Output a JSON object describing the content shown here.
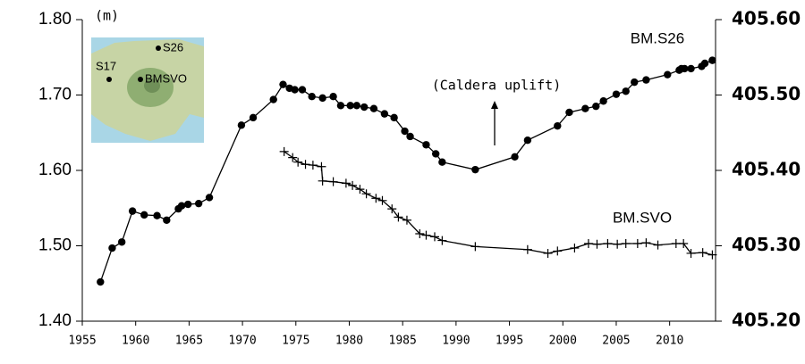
{
  "chart_data": {
    "type": "line",
    "xlim": [
      1955,
      2014.3
    ],
    "xticks": [
      1955,
      1960,
      1965,
      1970,
      1975,
      1980,
      1985,
      1990,
      1995,
      2000,
      2005,
      2010
    ],
    "ylim": [
      1.4,
      1.8
    ],
    "yticks": [
      {
        "value": 1.4,
        "label": "1.40"
      },
      {
        "value": 1.5,
        "label": "1.50"
      },
      {
        "value": 1.6,
        "label": "1.60"
      },
      {
        "value": 1.7,
        "label": "1.70"
      },
      {
        "value": 1.8,
        "label": "1.80"
      }
    ],
    "y2lim": [
      405.2,
      405.6
    ],
    "y2ticks": [
      {
        "value": 405.2,
        "label": "405.20"
      },
      {
        "value": 405.3,
        "label": "405.30"
      },
      {
        "value": 405.4,
        "label": "405.40"
      },
      {
        "value": 405.5,
        "label": "405.50"
      },
      {
        "value": 405.6,
        "label": "405.60"
      }
    ],
    "y_unit": "(m)",
    "annotations": [
      "(Caldera uplift)"
    ],
    "inset_labels": [
      "S26",
      "S17",
      "BMSVO"
    ],
    "series": [
      {
        "name": "BM.S26",
        "color": "#000000",
        "marker": "circle",
        "x": [
          1956.7,
          1957.8,
          1958.7,
          1959.7,
          1960.8,
          1962.0,
          1962.9,
          1964.0,
          1964.3,
          1964.9,
          1965.9,
          1966.9,
          1969.9,
          1971.0,
          1972.9,
          1973.8,
          1974.4,
          1974.9,
          1975.6,
          1976.5,
          1977.5,
          1978.5,
          1979.2,
          1980.1,
          1980.7,
          1981.4,
          1982.3,
          1983.3,
          1984.2,
          1985.2,
          1985.7,
          1987.2,
          1988.1,
          1988.7,
          1991.8,
          1995.5,
          1996.7,
          1999.5,
          2000.6,
          2002.1,
          2003.1,
          2003.8,
          2005.0,
          2005.9,
          2006.7,
          2007.8,
          2009.8,
          2010.9,
          2011.1,
          2011.4,
          2012.0,
          2013.0,
          2013.3,
          2014.0
        ],
        "values": [
          1.452,
          1.497,
          1.505,
          1.546,
          1.541,
          1.54,
          1.534,
          1.549,
          1.553,
          1.555,
          1.556,
          1.564,
          1.66,
          1.67,
          1.694,
          1.714,
          1.709,
          1.707,
          1.707,
          1.698,
          1.696,
          1.698,
          1.686,
          1.686,
          1.686,
          1.684,
          1.682,
          1.675,
          1.67,
          1.652,
          1.645,
          1.634,
          1.622,
          1.611,
          1.601,
          1.618,
          1.64,
          1.659,
          1.677,
          1.682,
          1.685,
          1.692,
          1.701,
          1.705,
          1.717,
          1.72,
          1.727,
          1.733,
          1.735,
          1.735,
          1.735,
          1.738,
          1.742,
          1.746
        ]
      },
      {
        "name": "BM.SVO",
        "color": "#000000",
        "marker": "plus",
        "axis": "y2",
        "x": [
          1973.9,
          1974.7,
          1975.2,
          1975.9,
          1976.6,
          1977.4,
          1977.5,
          1978.5,
          1979.7,
          1980.3,
          1981.0,
          1981.6,
          1982.5,
          1983.1,
          1984.0,
          1984.6,
          1985.4,
          1986.6,
          1987.2,
          1988.0,
          1988.7,
          1991.8,
          1996.7,
          1998.6,
          1999.5,
          2001.1,
          2002.4,
          2003.2,
          2004.2,
          2005.1,
          2005.9,
          2007.0,
          2007.8,
          2008.9,
          2010.6,
          2011.3,
          2012.0,
          2013.1,
          2014.0
        ],
        "values": [
          405.425,
          405.417,
          405.411,
          405.408,
          405.407,
          405.405,
          405.386,
          405.385,
          405.383,
          405.38,
          405.375,
          405.369,
          405.363,
          405.36,
          405.349,
          405.338,
          405.334,
          405.316,
          405.314,
          405.312,
          405.307,
          405.299,
          405.295,
          405.29,
          405.293,
          405.297,
          405.303,
          405.302,
          405.303,
          405.302,
          405.303,
          405.303,
          405.304,
          405.301,
          405.303,
          405.303,
          405.29,
          405.291,
          405.288
        ]
      }
    ]
  }
}
